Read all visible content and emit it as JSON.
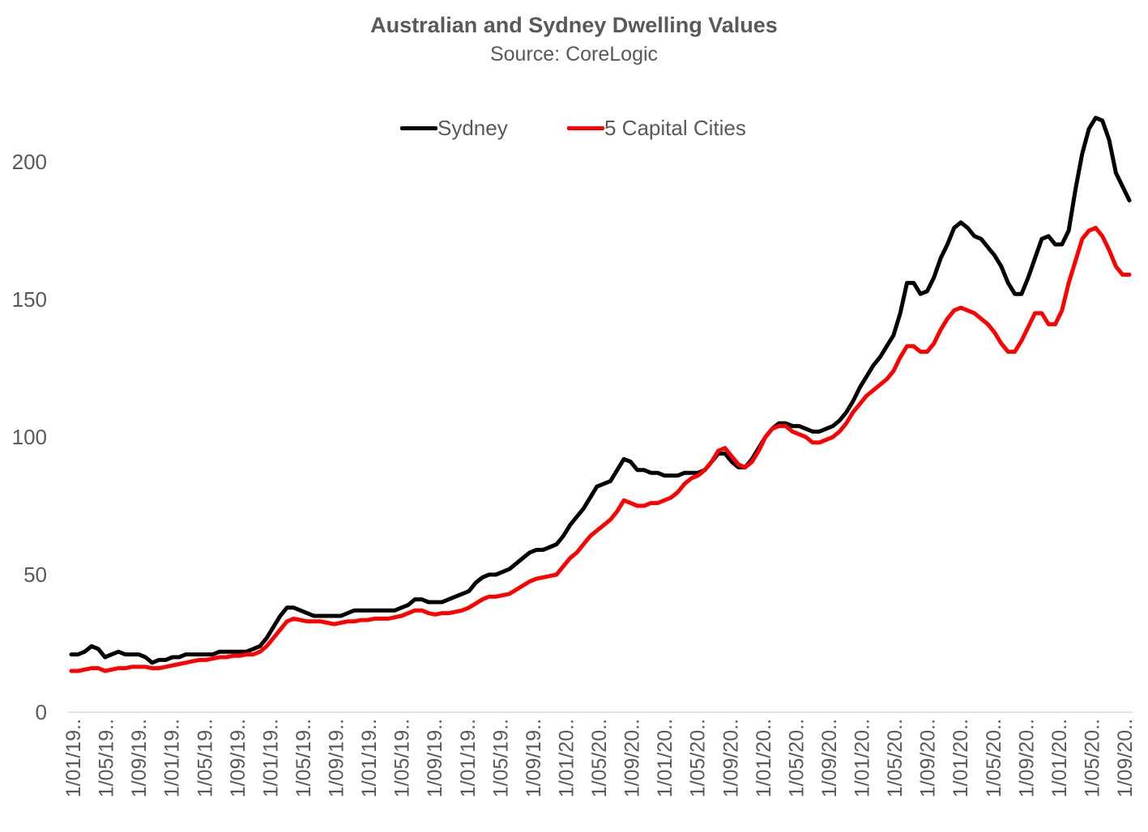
{
  "chart_data": {
    "type": "line",
    "title": "Australian  and Sydney Dwelling Values",
    "subtitle": "Source: CoreLogic",
    "ylim": [
      0,
      220
    ],
    "y_ticks": [
      0,
      50,
      100,
      150,
      200
    ],
    "grid": false,
    "legend_position": "top",
    "x_labels": [
      "1/01/19..",
      "1/05/19..",
      "1/09/19..",
      "1/01/19..",
      "1/05/19..",
      "1/09/19..",
      "1/01/19..",
      "1/05/19..",
      "1/09/19..",
      "1/01/19..",
      "1/05/19..",
      "1/09/19..",
      "1/01/19..",
      "1/05/19..",
      "1/09/19..",
      "1/01/20..",
      "1/05/20..",
      "1/09/20..",
      "1/01/20..",
      "1/05/20..",
      "1/09/20..",
      "1/01/20..",
      "1/05/20..",
      "1/09/20..",
      "1/01/20..",
      "1/05/20..",
      "1/09/20..",
      "1/01/20..",
      "1/05/20..",
      "1/09/20..",
      "1/01/20..",
      "1/05/20..",
      "1/09/20.."
    ],
    "series": [
      {
        "name": "Sydney",
        "color": "#000000",
        "points": [
          [
            0,
            21
          ],
          [
            1,
            21
          ],
          [
            2,
            22
          ],
          [
            3,
            24
          ],
          [
            4,
            23
          ],
          [
            5,
            20
          ],
          [
            6,
            21
          ],
          [
            7,
            22
          ],
          [
            8,
            21
          ],
          [
            9,
            21
          ],
          [
            10,
            21
          ],
          [
            11,
            20
          ],
          [
            12,
            18
          ],
          [
            13,
            19
          ],
          [
            14,
            19
          ],
          [
            15,
            20
          ],
          [
            16,
            20
          ],
          [
            17,
            21
          ],
          [
            18,
            21
          ],
          [
            19,
            21
          ],
          [
            20,
            21
          ],
          [
            21,
            21
          ],
          [
            22,
            22
          ],
          [
            23,
            22
          ],
          [
            24,
            22
          ],
          [
            25,
            22
          ],
          [
            26,
            22
          ],
          [
            27,
            23
          ],
          [
            28,
            24
          ],
          [
            29,
            27
          ],
          [
            30,
            31
          ],
          [
            31,
            35
          ],
          [
            32,
            38
          ],
          [
            33,
            38
          ],
          [
            34,
            37
          ],
          [
            35,
            36
          ],
          [
            36,
            35
          ],
          [
            37,
            35
          ],
          [
            38,
            35
          ],
          [
            39,
            35
          ],
          [
            40,
            35
          ],
          [
            41,
            36
          ],
          [
            42,
            37
          ],
          [
            43,
            37
          ],
          [
            44,
            37
          ],
          [
            45,
            37
          ],
          [
            46,
            37
          ],
          [
            47,
            37
          ],
          [
            48,
            37
          ],
          [
            49,
            38
          ],
          [
            50,
            39
          ],
          [
            51,
            41
          ],
          [
            52,
            41
          ],
          [
            53,
            40
          ],
          [
            54,
            40
          ],
          [
            55,
            40
          ],
          [
            56,
            41
          ],
          [
            57,
            42
          ],
          [
            58,
            43
          ],
          [
            59,
            44
          ],
          [
            60,
            47
          ],
          [
            61,
            49
          ],
          [
            62,
            50
          ],
          [
            63,
            50
          ],
          [
            64,
            51
          ],
          [
            65,
            52
          ],
          [
            66,
            54
          ],
          [
            67,
            56
          ],
          [
            68,
            58
          ],
          [
            69,
            59
          ],
          [
            70,
            59
          ],
          [
            71,
            60
          ],
          [
            72,
            61
          ],
          [
            73,
            64
          ],
          [
            74,
            68
          ],
          [
            75,
            71
          ],
          [
            76,
            74
          ],
          [
            77,
            78
          ],
          [
            78,
            82
          ],
          [
            79,
            83
          ],
          [
            80,
            84
          ],
          [
            81,
            88
          ],
          [
            82,
            92
          ],
          [
            83,
            91
          ],
          [
            84,
            88
          ],
          [
            85,
            88
          ],
          [
            86,
            87
          ],
          [
            87,
            87
          ],
          [
            88,
            86
          ],
          [
            89,
            86
          ],
          [
            90,
            86
          ],
          [
            91,
            87
          ],
          [
            92,
            87
          ],
          [
            93,
            87
          ],
          [
            94,
            88
          ],
          [
            95,
            91
          ],
          [
            96,
            94
          ],
          [
            97,
            94
          ],
          [
            98,
            91
          ],
          [
            99,
            89
          ],
          [
            100,
            89
          ],
          [
            101,
            92
          ],
          [
            102,
            96
          ],
          [
            103,
            100
          ],
          [
            104,
            103
          ],
          [
            105,
            105
          ],
          [
            106,
            105
          ],
          [
            107,
            104
          ],
          [
            108,
            104
          ],
          [
            109,
            103
          ],
          [
            110,
            102
          ],
          [
            111,
            102
          ],
          [
            112,
            103
          ],
          [
            113,
            104
          ],
          [
            114,
            106
          ],
          [
            115,
            109
          ],
          [
            116,
            113
          ],
          [
            117,
            118
          ],
          [
            118,
            122
          ],
          [
            119,
            126
          ],
          [
            120,
            129
          ],
          [
            121,
            133
          ],
          [
            122,
            137
          ],
          [
            123,
            145
          ],
          [
            124,
            156
          ],
          [
            125,
            156
          ],
          [
            126,
            152
          ],
          [
            127,
            153
          ],
          [
            128,
            158
          ],
          [
            129,
            165
          ],
          [
            130,
            170
          ],
          [
            131,
            176
          ],
          [
            132,
            178
          ],
          [
            133,
            176
          ],
          [
            134,
            173
          ],
          [
            135,
            172
          ],
          [
            136,
            169
          ],
          [
            137,
            166
          ],
          [
            138,
            162
          ],
          [
            139,
            156
          ],
          [
            140,
            152
          ],
          [
            141,
            152
          ],
          [
            142,
            158
          ],
          [
            143,
            165
          ],
          [
            144,
            172
          ],
          [
            145,
            173
          ],
          [
            146,
            170
          ],
          [
            147,
            170
          ],
          [
            148,
            175
          ],
          [
            149,
            190
          ],
          [
            150,
            203
          ],
          [
            151,
            212
          ],
          [
            152,
            216
          ],
          [
            153,
            215
          ],
          [
            154,
            208
          ],
          [
            155,
            196
          ],
          [
            156,
            191
          ],
          [
            157,
            186
          ]
        ]
      },
      {
        "name": "5 Capital Cities",
        "color": "#ff0000",
        "points": [
          [
            0,
            15
          ],
          [
            1,
            15
          ],
          [
            2,
            15.5
          ],
          [
            3,
            16
          ],
          [
            4,
            16
          ],
          [
            5,
            15
          ],
          [
            6,
            15.5
          ],
          [
            7,
            16
          ],
          [
            8,
            16
          ],
          [
            9,
            16.5
          ],
          [
            10,
            16.5
          ],
          [
            11,
            16.5
          ],
          [
            12,
            16
          ],
          [
            13,
            16
          ],
          [
            14,
            16.5
          ],
          [
            15,
            17
          ],
          [
            16,
            17.5
          ],
          [
            17,
            18
          ],
          [
            18,
            18.5
          ],
          [
            19,
            19
          ],
          [
            20,
            19
          ],
          [
            21,
            19.5
          ],
          [
            22,
            20
          ],
          [
            23,
            20
          ],
          [
            24,
            20.5
          ],
          [
            25,
            20.5
          ],
          [
            26,
            21
          ],
          [
            27,
            21
          ],
          [
            28,
            22
          ],
          [
            29,
            24
          ],
          [
            30,
            27
          ],
          [
            31,
            30
          ],
          [
            32,
            33
          ],
          [
            33,
            34
          ],
          [
            34,
            33.5
          ],
          [
            35,
            33
          ],
          [
            36,
            33
          ],
          [
            37,
            33
          ],
          [
            38,
            32.5
          ],
          [
            39,
            32
          ],
          [
            40,
            32.5
          ],
          [
            41,
            33
          ],
          [
            42,
            33
          ],
          [
            43,
            33.5
          ],
          [
            44,
            33.5
          ],
          [
            45,
            34
          ],
          [
            46,
            34
          ],
          [
            47,
            34
          ],
          [
            48,
            34.5
          ],
          [
            49,
            35
          ],
          [
            50,
            36
          ],
          [
            51,
            37
          ],
          [
            52,
            37
          ],
          [
            53,
            36
          ],
          [
            54,
            35.5
          ],
          [
            55,
            36
          ],
          [
            56,
            36
          ],
          [
            57,
            36.5
          ],
          [
            58,
            37
          ],
          [
            59,
            38
          ],
          [
            60,
            39.5
          ],
          [
            61,
            41
          ],
          [
            62,
            42
          ],
          [
            63,
            42
          ],
          [
            64,
            42.5
          ],
          [
            65,
            43
          ],
          [
            66,
            44.5
          ],
          [
            67,
            46
          ],
          [
            68,
            47.5
          ],
          [
            69,
            48.5
          ],
          [
            70,
            49
          ],
          [
            71,
            49.5
          ],
          [
            72,
            50
          ],
          [
            73,
            53
          ],
          [
            74,
            56
          ],
          [
            75,
            58
          ],
          [
            76,
            61
          ],
          [
            77,
            64
          ],
          [
            78,
            66
          ],
          [
            79,
            68
          ],
          [
            80,
            70
          ],
          [
            81,
            73
          ],
          [
            82,
            77
          ],
          [
            83,
            76
          ],
          [
            84,
            75
          ],
          [
            85,
            75
          ],
          [
            86,
            76
          ],
          [
            87,
            76
          ],
          [
            88,
            77
          ],
          [
            89,
            78
          ],
          [
            90,
            80
          ],
          [
            91,
            83
          ],
          [
            92,
            85
          ],
          [
            93,
            86
          ],
          [
            94,
            88
          ],
          [
            95,
            91
          ],
          [
            96,
            95
          ],
          [
            97,
            96
          ],
          [
            98,
            93
          ],
          [
            99,
            90
          ],
          [
            100,
            89
          ],
          [
            101,
            91
          ],
          [
            102,
            95
          ],
          [
            103,
            100
          ],
          [
            104,
            103
          ],
          [
            105,
            104
          ],
          [
            106,
            104
          ],
          [
            107,
            102
          ],
          [
            108,
            101
          ],
          [
            109,
            100
          ],
          [
            110,
            98
          ],
          [
            111,
            98
          ],
          [
            112,
            99
          ],
          [
            113,
            100
          ],
          [
            114,
            102
          ],
          [
            115,
            105
          ],
          [
            116,
            109
          ],
          [
            117,
            112
          ],
          [
            118,
            115
          ],
          [
            119,
            117
          ],
          [
            120,
            119
          ],
          [
            121,
            121
          ],
          [
            122,
            124
          ],
          [
            123,
            129
          ],
          [
            124,
            133
          ],
          [
            125,
            133
          ],
          [
            126,
            131
          ],
          [
            127,
            131
          ],
          [
            128,
            134
          ],
          [
            129,
            139
          ],
          [
            130,
            143
          ],
          [
            131,
            146
          ],
          [
            132,
            147
          ],
          [
            133,
            146
          ],
          [
            134,
            145
          ],
          [
            135,
            143
          ],
          [
            136,
            141
          ],
          [
            137,
            138
          ],
          [
            138,
            134
          ],
          [
            139,
            131
          ],
          [
            140,
            131
          ],
          [
            141,
            135
          ],
          [
            142,
            140
          ],
          [
            143,
            145
          ],
          [
            144,
            145
          ],
          [
            145,
            141
          ],
          [
            146,
            141
          ],
          [
            147,
            146
          ],
          [
            148,
            156
          ],
          [
            149,
            164
          ],
          [
            150,
            172
          ],
          [
            151,
            175
          ],
          [
            152,
            176
          ],
          [
            153,
            173
          ],
          [
            154,
            168
          ],
          [
            155,
            162
          ],
          [
            156,
            159
          ],
          [
            157,
            159
          ]
        ]
      }
    ]
  }
}
